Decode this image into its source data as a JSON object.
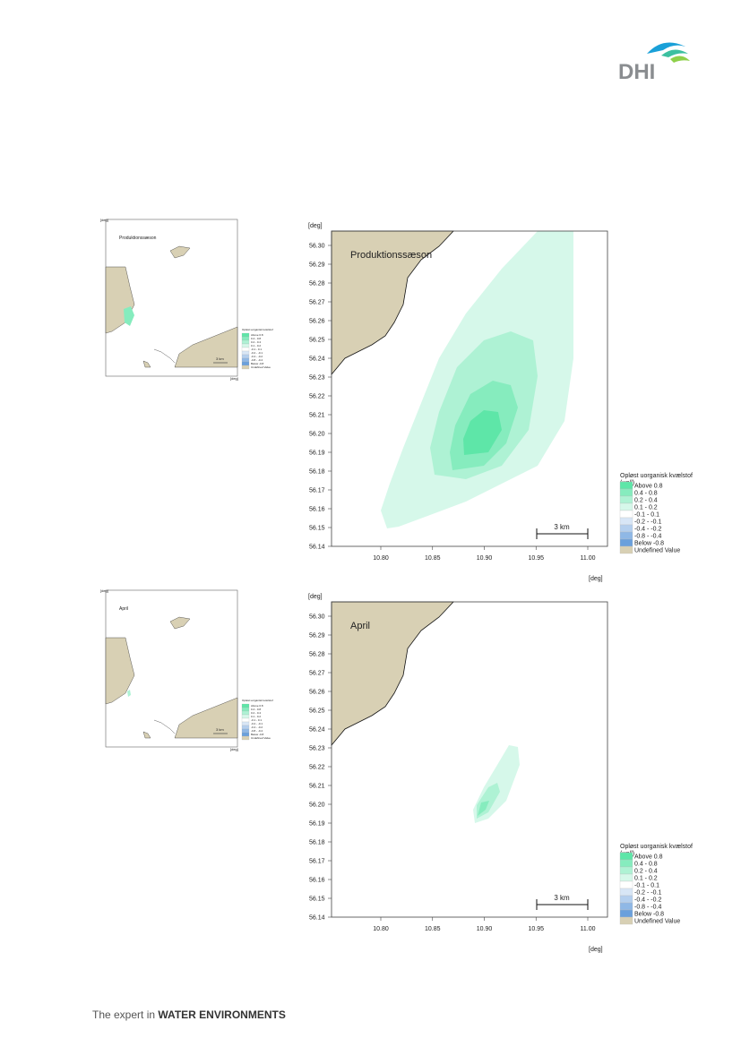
{
  "header": {
    "logo": "DHI"
  },
  "footer": {
    "prefix": "The expert in ",
    "emphasis": "WATER ENVIRONMENTS"
  },
  "axes": {
    "unit": "[deg]",
    "yticks": [
      "56.30",
      "56.29",
      "56.28",
      "56.27",
      "56.26",
      "56.25",
      "56.24",
      "56.23",
      "56.22",
      "56.21",
      "56.20",
      "56.19",
      "56.18",
      "56.17",
      "56.16",
      "56.15",
      "56.14"
    ],
    "xticks": [
      "10.80",
      "10.85",
      "10.90",
      "10.95",
      "11.00"
    ],
    "scale_bar": "3 km"
  },
  "legend": {
    "title": "Opløst uorganisk kvælstof",
    "unit": "(µg/l)",
    "items": [
      {
        "label": "Above  0.8",
        "color": "#5ee6a8"
      },
      {
        "label": "0.4 -  0.8",
        "color": "#86ecbe"
      },
      {
        "label": "0.2 -  0.4",
        "color": "#aef2d4"
      },
      {
        "label": "0.1 -  0.2",
        "color": "#d6f8ea"
      },
      {
        "label": "-0.1 -  0.1",
        "color": "#ffffff"
      },
      {
        "label": "-0.2 - -0.1",
        "color": "#d8e6f6"
      },
      {
        "label": "-0.4 - -0.2",
        "color": "#b4cfee"
      },
      {
        "label": "-0.8 - -0.4",
        "color": "#8fb8e6"
      },
      {
        "label": "Below -0.8",
        "color": "#6aa0dc"
      },
      {
        "label": "Undefined Value",
        "color": "#d8d0b4"
      }
    ]
  },
  "panels": [
    {
      "label": "Produktionssæson"
    },
    {
      "label": "April"
    }
  ]
}
